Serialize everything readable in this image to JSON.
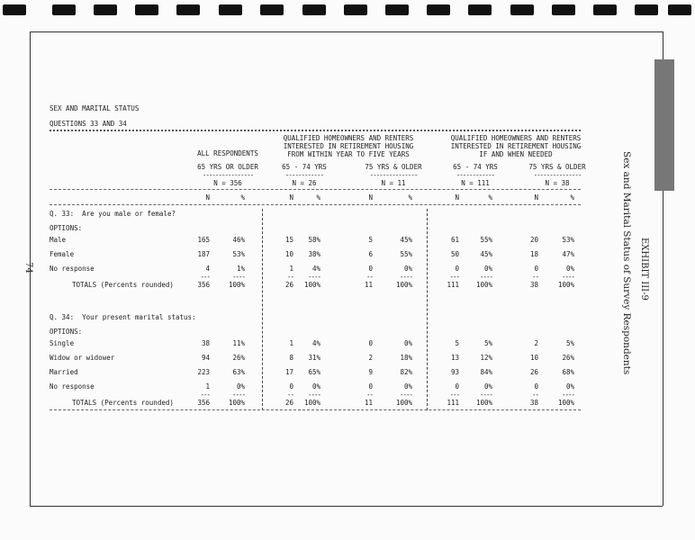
{
  "page_number": "74",
  "exhibit": "EXHIBIT III-9",
  "exhibit_title": "Sex and Marital Status of Survey Respondents",
  "title": "SEX AND MARITAL STATUS",
  "subtitle": "QUESTIONS 33 AND 34",
  "groups": [
    {
      "label": "ALL RESPONDENTS"
    },
    {
      "label": "QUALIFIED HOMEOWNERS AND RENTERS\nINTERESTED IN RETIREMENT HOUSING\nFROM WITHIN YEAR TO FIVE YEARS"
    },
    {
      "label": "QUALIFIED HOMEOWNERS AND RENTERS\nINTERESTED IN RETIREMENT HOUSING\nIF AND WHEN NEEDED"
    }
  ],
  "columns": [
    {
      "age": "65 YRS OR OLDER",
      "n": "N = 356"
    },
    {
      "age": "65 - 74 YRS",
      "n": "N = 26"
    },
    {
      "age": "75 YRS & OLDER",
      "n": "N = 11"
    },
    {
      "age": "65 - 74 YRS",
      "n": "N = 111"
    },
    {
      "age": "75 YRS & OLDER",
      "n": "N = 38"
    }
  ],
  "col_n_label": "N",
  "col_pct_label": "%",
  "options_label": "OPTIONS:",
  "questions": [
    {
      "question": "Q. 33:  Are you male or female?",
      "rows": [
        {
          "label": "Male",
          "values": [
            "165",
            "46%",
            "15",
            "58%",
            "5",
            "45%",
            "61",
            "55%",
            "20",
            "53%"
          ]
        },
        {
          "label": "Female",
          "values": [
            "187",
            "53%",
            "10",
            "38%",
            "6",
            "55%",
            "50",
            "45%",
            "18",
            "47%"
          ]
        },
        {
          "label": "No response",
          "values": [
            "4",
            "1%",
            "1",
            "4%",
            "0",
            "0%",
            "0",
            "0%",
            "0",
            "0%"
          ]
        }
      ],
      "totals": {
        "label": "TOTALS (Percents rounded)",
        "values": [
          "356",
          "100%",
          "26",
          "100%",
          "11",
          "100%",
          "111",
          "100%",
          "38",
          "100%"
        ]
      }
    },
    {
      "question": "Q. 34:  Your present marital status:",
      "rows": [
        {
          "label": "Single",
          "values": [
            "38",
            "11%",
            "1",
            "4%",
            "0",
            "0%",
            "5",
            "5%",
            "2",
            "5%"
          ]
        },
        {
          "label": "Widow or widower",
          "values": [
            "94",
            "26%",
            "8",
            "31%",
            "2",
            "18%",
            "13",
            "12%",
            "10",
            "26%"
          ]
        },
        {
          "label": "Married",
          "values": [
            "223",
            "63%",
            "17",
            "65%",
            "9",
            "82%",
            "93",
            "84%",
            "26",
            "68%"
          ]
        },
        {
          "label": "No response",
          "values": [
            "1",
            "0%",
            "0",
            "0%",
            "0",
            "0%",
            "0",
            "0%",
            "0",
            "0%"
          ]
        }
      ],
      "totals": {
        "label": "TOTALS (Percents rounded)",
        "values": [
          "356",
          "100%",
          "26",
          "100%",
          "11",
          "100%",
          "111",
          "100%",
          "38",
          "100%"
        ]
      }
    }
  ]
}
